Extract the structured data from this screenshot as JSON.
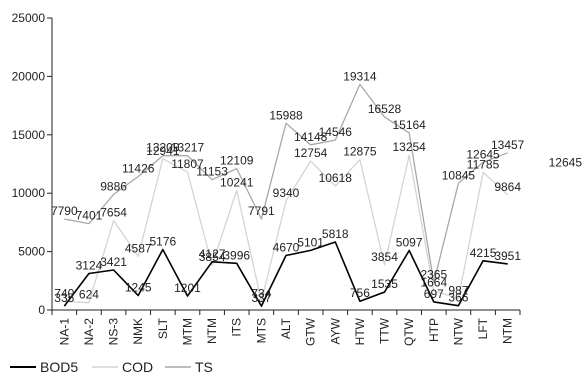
{
  "chart_data": {
    "type": "line",
    "title": "",
    "xlabel": "",
    "ylabel": "",
    "ylim": [
      0,
      25000
    ],
    "yticks": [
      0,
      5000,
      10000,
      15000,
      20000,
      25000
    ],
    "categories": [
      "NA-1",
      "NA-2",
      "NS-3",
      "NMK",
      "SLT",
      "MTM",
      "NTM",
      "ITS",
      "MTS",
      "ALT",
      "GTW",
      "AYW",
      "HTW",
      "TTW",
      "QTW",
      "HTP",
      "NTW",
      "LFT",
      "NTM"
    ],
    "series": [
      {
        "name": "BOD5",
        "color": "#000000",
        "values": [
          335,
          3124,
          3421,
          1245,
          5176,
          1201,
          4127,
          3996,
          337,
          4670,
          5101,
          5818,
          756,
          1535,
          5097,
          697,
          366,
          4215,
          3951
        ],
        "labels": [
          "335",
          "3124",
          "3421",
          "1245",
          "5176",
          "1201",
          "4127",
          "3996",
          "337",
          "4670",
          "5101",
          "5818",
          "756",
          "1535",
          "5097",
          "697",
          "366",
          "4215",
          "3951"
        ]
      },
      {
        "name": "COD",
        "color": "#d4d4d4",
        "values": [
          740,
          624,
          7654,
          4587,
          12941,
          11807,
          3854,
          10241,
          734,
          9340,
          12754,
          10618,
          12875,
          3854,
          13254,
          1664,
          987,
          11785,
          9864
        ],
        "labels": [
          "740",
          "624",
          "7654",
          "4587",
          "12941",
          "11807",
          "3854",
          "10241",
          "734",
          "9340",
          "12754",
          "10618",
          "12875",
          "3854",
          "13254",
          "1664",
          "987",
          "11785",
          "9864"
        ]
      },
      {
        "name": "TS",
        "color": "#a8a8a8",
        "values": [
          7790,
          7401,
          9886,
          11426,
          13209,
          13217,
          11153,
          12109,
          7791,
          15988,
          14148,
          14546,
          19314,
          16528,
          15164,
          2365,
          10845,
          12645,
          13457
        ],
        "labels": [
          "7790",
          "7401",
          "9886",
          "11426",
          "13209",
          "13217",
          "11153",
          "12109",
          "7791",
          "15988",
          "14148",
          "14546",
          "19314",
          "16528",
          "15164",
          "2365",
          "10845",
          "12645",
          "13457"
        ]
      }
    ],
    "stray_label": "12645",
    "legend_position": "bottom-left",
    "grid": false
  }
}
